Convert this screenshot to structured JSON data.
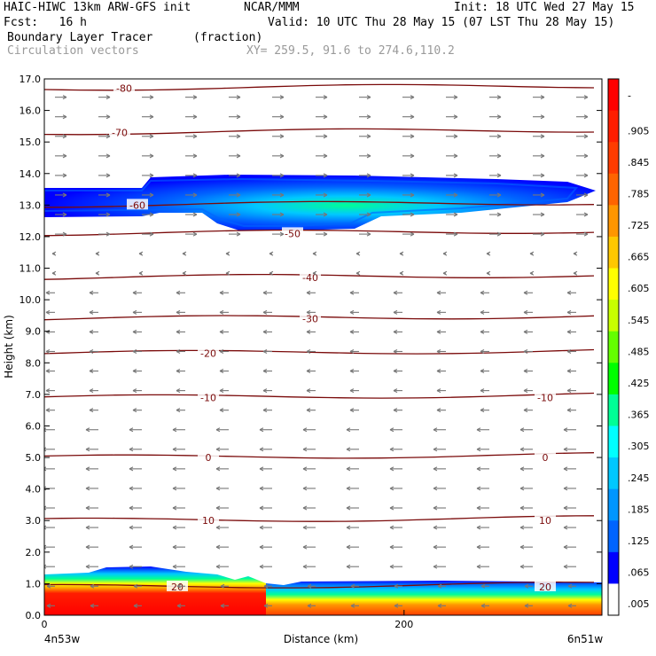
{
  "header": {
    "model": "HAIC-HIWC 13km ARW-GFS init",
    "org": "NCAR/MMM",
    "init": "Init: 18 UTC Wed 27 May 15",
    "fcst": "Fcst:   16 h",
    "valid": "Valid: 10 UTC Thu 28 May 15 (07 LST Thu 28 May 15)",
    "field1": "Boundary Layer Tracer",
    "field1_units": "(fraction)",
    "field2": "Circulation vectors",
    "xy": "XY= 259.5, 91.6 to 274.6,110.2"
  },
  "chart_data": {
    "type": "heatmap",
    "xlabel": "Distance (km)",
    "ylabel": "Height (km)",
    "xlim": [
      0,
      310
    ],
    "ylim": [
      0,
      17
    ],
    "x_ticks": [
      0,
      200
    ],
    "y_ticks": [
      "0.0",
      "1.0",
      "2.0",
      "3.0",
      "4.0",
      "5.0",
      "6.0",
      "7.0",
      "8.0",
      "9.0",
      "10.0",
      "11.0",
      "12.0",
      "13.0",
      "14.0",
      "15.0",
      "16.0",
      "17.0"
    ],
    "x_end_labels": {
      "left": "4n53w",
      "right": "6n51w"
    },
    "colorbar": {
      "labels": [
        "-",
        ".905",
        ".845",
        ".785",
        ".725",
        ".665",
        ".605",
        ".545",
        ".485",
        ".425",
        ".365",
        ".305",
        ".245",
        ".185",
        ".125",
        ".065",
        ".005"
      ],
      "colors": [
        "#ff0000",
        "#ff1e00",
        "#ff3c00",
        "#ff6400",
        "#ff9600",
        "#ffc800",
        "#ffff00",
        "#c8ff00",
        "#64ff00",
        "#00ff00",
        "#00ff96",
        "#00ffff",
        "#00c8ff",
        "#0096ff",
        "#0064ff",
        "#0000ff",
        "#ffffff"
      ]
    },
    "temperature_contours": [
      {
        "label": "-80",
        "y": 16.7
      },
      {
        "label": "-70",
        "y": 15.3
      },
      {
        "label": "-60",
        "y": 13.0
      },
      {
        "label": "-50",
        "y": 12.1
      },
      {
        "label": "-40",
        "y": 10.7
      },
      {
        "label": "-30",
        "y": 9.4
      },
      {
        "label": "-20",
        "y": 8.3
      },
      {
        "label": "-10",
        "y": 6.9
      },
      {
        "label": "0",
        "y": 5.0
      },
      {
        "label": "10",
        "y": 3.0
      },
      {
        "label": "20",
        "y": 0.9
      }
    ],
    "tracer_layers": [
      {
        "name": "upper plume",
        "base_km": 12.3,
        "top_km": 13.8,
        "max_fraction": 0.3
      },
      {
        "name": "boundary layer",
        "base_km": 0.0,
        "top_km": 1.4,
        "max_fraction": 0.95
      }
    ]
  }
}
